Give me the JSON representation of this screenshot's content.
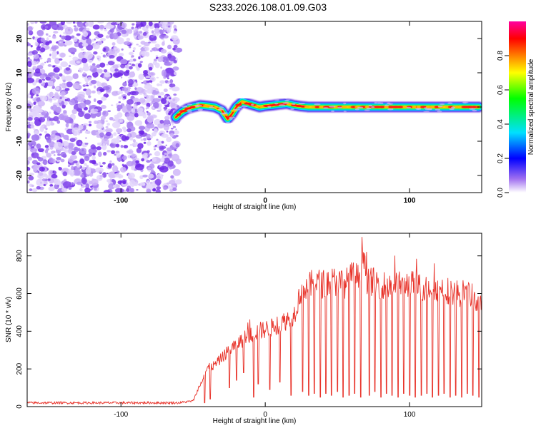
{
  "page": {
    "title": "S233.2026.108.01.09.G03"
  },
  "chart_data": [
    {
      "type": "heatmap",
      "xlabel": "Height of straight line (km)",
      "ylabel": "Frequency (Hz)",
      "xlim": [
        -165,
        150
      ],
      "ylim": [
        -25,
        25
      ],
      "xticks": [
        -100,
        0,
        100
      ],
      "yticks": [
        -20,
        -10,
        0,
        10,
        20
      ],
      "noise_region_x": [
        -165,
        -62
      ],
      "ridge": {
        "x": [
          -62,
          -58,
          -54,
          -50,
          -45,
          -40,
          -35,
          -30,
          -26,
          -23,
          -20,
          -16,
          -12,
          -8,
          -4,
          0,
          5,
          10,
          15,
          20,
          25,
          30,
          40,
          60,
          80,
          100,
          120,
          140,
          148
        ],
        "y": [
          -3,
          -1.5,
          -0.5,
          0,
          0.5,
          0.3,
          0,
          -1,
          -3.5,
          -2,
          0,
          1.5,
          1,
          0.5,
          0,
          0.3,
          0.5,
          0.8,
          1,
          0.5,
          0.2,
          0,
          0,
          0,
          0,
          0,
          0,
          0,
          0
        ]
      },
      "colorbar": {
        "label": "Normalized spectral amplitude",
        "range": [
          0,
          1
        ],
        "ticks": [
          0.0,
          0.2,
          0.4,
          0.6,
          0.8
        ],
        "colors": [
          "#ffffff",
          "#a070f0",
          "#0000ff",
          "#00e0ff",
          "#00ff00",
          "#ffff00",
          "#ff7f00",
          "#ff0000",
          "#ff00a0"
        ]
      }
    },
    {
      "type": "line",
      "xlabel": "Height of straight line (km)",
      "ylabel": "SNR (10 * v/v)",
      "xlim": [
        -165,
        150
      ],
      "ylim": [
        0,
        920
      ],
      "xticks": [
        -100,
        0,
        100
      ],
      "yticks": [
        0,
        200,
        400,
        600,
        800
      ],
      "series": [
        {
          "name": "SNR",
          "color": "#e8332a",
          "x": [
            -165,
            -140,
            -120,
            -100,
            -80,
            -60,
            -50,
            -45,
            -42,
            -40,
            -38,
            -35,
            -30,
            -25,
            -20,
            -15,
            -10,
            -5,
            0,
            5,
            10,
            15,
            20,
            25,
            30,
            35,
            40,
            45,
            50,
            55,
            60,
            65,
            68,
            70,
            75,
            80,
            85,
            90,
            95,
            100,
            105,
            110,
            115,
            120,
            125,
            130,
            135,
            140,
            145,
            150
          ],
          "y": [
            20,
            20,
            20,
            20,
            20,
            20,
            30,
            120,
            180,
            200,
            210,
            220,
            260,
            300,
            330,
            360,
            380,
            400,
            410,
            420,
            440,
            460,
            490,
            620,
            640,
            660,
            650,
            670,
            660,
            650,
            690,
            680,
            870,
            680,
            660,
            650,
            640,
            650,
            660,
            650,
            640,
            630,
            640,
            630,
            620,
            610,
            600,
            610,
            570,
            520
          ],
          "dip_x": [
            -42,
            -38,
            -25,
            -20,
            -15,
            -8,
            -5,
            3,
            10,
            18,
            26,
            30,
            34,
            38,
            42,
            46,
            50,
            54,
            58,
            62,
            66,
            72,
            76,
            80,
            84,
            88,
            92,
            96,
            100,
            104,
            108,
            112,
            116,
            120,
            124,
            128,
            132,
            136,
            140,
            144,
            148
          ],
          "dip_y": [
            20,
            40,
            100,
            140,
            180,
            50,
            120,
            90,
            130,
            60,
            80,
            60,
            70,
            50,
            70,
            60,
            80,
            50,
            60,
            70,
            50,
            60,
            80,
            50,
            70,
            60,
            50,
            70,
            60,
            50,
            60,
            70,
            50,
            60,
            70,
            50,
            60,
            50,
            70,
            60,
            50
          ]
        }
      ]
    }
  ]
}
